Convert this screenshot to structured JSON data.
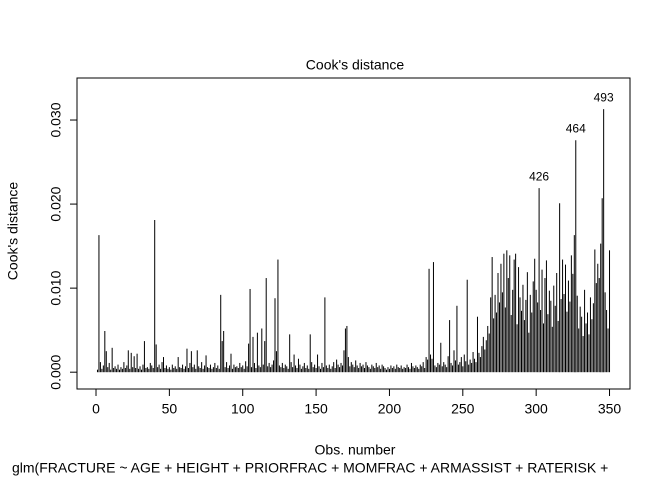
{
  "chart_data": {
    "type": "bar",
    "title": "Cook's distance",
    "y_label": "Cook's distance",
    "x_label": "Obs. number",
    "subtitle": "glm(FRACTURE ~ AGE + HEIGHT + PRIORFRAC + MOMFRAC + ARMASSIST + RATERISK +",
    "color": "#000000",
    "xlim": [
      -12.96,
      363.96
    ],
    "xticks": [
      0,
      50,
      100,
      150,
      200,
      250,
      300,
      350
    ],
    "ylim": [
      -0.002,
      0.035
    ],
    "yticks": [
      {
        "value": 0,
        "label": "0.000"
      },
      {
        "value": 0.01,
        "label": "0.010"
      },
      {
        "value": 0.02,
        "label": "0.020"
      },
      {
        "value": 0.03,
        "label": "0.030"
      }
    ],
    "annotations": [
      {
        "x": 302,
        "y": 0.0219,
        "label": "426"
      },
      {
        "x": 327,
        "y": 0.0276,
        "label": "464"
      },
      {
        "x": 346,
        "y": 0.0313,
        "label": "493"
      }
    ],
    "values": [
      0.0003,
      0.0163,
      0.0012,
      0.0004,
      0.0008,
      0.0049,
      0.0025,
      0.0006,
      0.0011,
      0.0003,
      0.0029,
      0.0005,
      0.0007,
      0.0004,
      0.0009,
      0.0003,
      0.0006,
      0.0004,
      0.0012,
      0.0005,
      0.0008,
      0.0026,
      0.0004,
      0.0023,
      0.0006,
      0.0019,
      0.0005,
      0.0022,
      0.0004,
      0.0007,
      0.0003,
      0.0009,
      0.0037,
      0.0005,
      0.0006,
      0.0004,
      0.0011,
      0.0008,
      0.0005,
      0.0181,
      0.0033,
      0.0006,
      0.0009,
      0.0004,
      0.0012,
      0.0018,
      0.0005,
      0.0008,
      0.0004,
      0.0006,
      0.0003,
      0.0009,
      0.0005,
      0.0007,
      0.0004,
      0.0018,
      0.0006,
      0.0005,
      0.0009,
      0.0004,
      0.0007,
      0.0028,
      0.0005,
      0.0011,
      0.0025,
      0.0006,
      0.0009,
      0.0004,
      0.0026,
      0.0007,
      0.0005,
      0.0012,
      0.0004,
      0.0008,
      0.002,
      0.0006,
      0.0005,
      0.0009,
      0.0004,
      0.0006,
      0.0011,
      0.0005,
      0.0008,
      0.0004,
      0.0092,
      0.0037,
      0.0049,
      0.0006,
      0.0012,
      0.0005,
      0.0008,
      0.0022,
      0.0004,
      0.0009,
      0.0006,
      0.0007,
      0.0005,
      0.0011,
      0.0006,
      0.0008,
      0.0004,
      0.0013,
      0.0007,
      0.0034,
      0.0099,
      0.0006,
      0.0042,
      0.0011,
      0.0005,
      0.0047,
      0.0008,
      0.0006,
      0.0052,
      0.0009,
      0.0037,
      0.0112,
      0.0007,
      0.0011,
      0.0006,
      0.0009,
      0.0014,
      0.0088,
      0.0025,
      0.0134,
      0.0008,
      0.0006,
      0.0011,
      0.0005,
      0.0009,
      0.0007,
      0.0004,
      0.0045,
      0.0012,
      0.0006,
      0.0021,
      0.0008,
      0.0005,
      0.0016,
      0.0009,
      0.0004,
      0.0007,
      0.0011,
      0.0005,
      0.0008,
      0.0004,
      0.0045,
      0.0012,
      0.0006,
      0.0009,
      0.0005,
      0.0021,
      0.0007,
      0.0004,
      0.0011,
      0.0006,
      0.0089,
      0.0008,
      0.0005,
      0.0009,
      0.0004,
      0.0007,
      0.0012,
      0.0005,
      0.0015,
      0.0009,
      0.0006,
      0.0011,
      0.0008,
      0.0026,
      0.0052,
      0.0055,
      0.0018,
      0.0007,
      0.0012,
      0.0009,
      0.0006,
      0.0014,
      0.0008,
      0.0005,
      0.0011,
      0.0007,
      0.0009,
      0.0005,
      0.0012,
      0.0008,
      0.0006,
      0.0004,
      0.0009,
      0.0007,
      0.0005,
      0.0011,
      0.0006,
      0.0008,
      0.0004,
      0.0009,
      0.0007,
      0.0005,
      0.0003,
      0.0006,
      0.0004,
      0.0008,
      0.0005,
      0.0007,
      0.0004,
      0.0009,
      0.0006,
      0.0005,
      0.0008,
      0.0004,
      0.0006,
      0.0005,
      0.0009,
      0.0006,
      0.0004,
      0.0011,
      0.0007,
      0.0005,
      0.0008,
      0.0006,
      0.0004,
      0.0009,
      0.0007,
      0.0012,
      0.0005,
      0.0018,
      0.0015,
      0.0123,
      0.0021,
      0.0016,
      0.0131,
      0.0008,
      0.0006,
      0.0011,
      0.0009,
      0.0035,
      0.0007,
      0.0012,
      0.0009,
      0.0006,
      0.0019,
      0.0062,
      0.0011,
      0.0008,
      0.0026,
      0.0014,
      0.0079,
      0.0009,
      0.0012,
      0.0018,
      0.0007,
      0.0021,
      0.0013,
      0.011,
      0.0009,
      0.0015,
      0.0011,
      0.0024,
      0.0016,
      0.0012,
      0.0066,
      0.0023,
      0.0018,
      0.0031,
      0.0042,
      0.0027,
      0.0038,
      0.0055,
      0.0046,
      0.0089,
      0.0137,
      0.0064,
      0.0092,
      0.0071,
      0.0118,
      0.0083,
      0.0129,
      0.0095,
      0.0141,
      0.0077,
      0.0145,
      0.0112,
      0.0139,
      0.0068,
      0.0098,
      0.0134,
      0.0141,
      0.0057,
      0.0125,
      0.0089,
      0.0073,
      0.0104,
      0.0062,
      0.0086,
      0.0119,
      0.0047,
      0.0092,
      0.0071,
      0.0108,
      0.0135,
      0.0098,
      0.0083,
      0.0219,
      0.0074,
      0.0122,
      0.0058,
      0.0112,
      0.0133,
      0.0069,
      0.0097,
      0.0085,
      0.0054,
      0.0103,
      0.0079,
      0.0118,
      0.0061,
      0.0201,
      0.0087,
      0.0134,
      0.0093,
      0.0128,
      0.0072,
      0.0109,
      0.0084,
      0.0139,
      0.0117,
      0.0163,
      0.0276,
      0.0091,
      0.0052,
      0.0078,
      0.0066,
      0.0043,
      0.0098,
      0.0058,
      0.0071,
      0.0045,
      0.0089,
      0.0063,
      0.0082,
      0.0146,
      0.0106,
      0.0129,
      0.0112,
      0.0153,
      0.0207,
      0.0313,
      0.0095,
      0.0074,
      0.0052,
      0.0145
    ]
  }
}
